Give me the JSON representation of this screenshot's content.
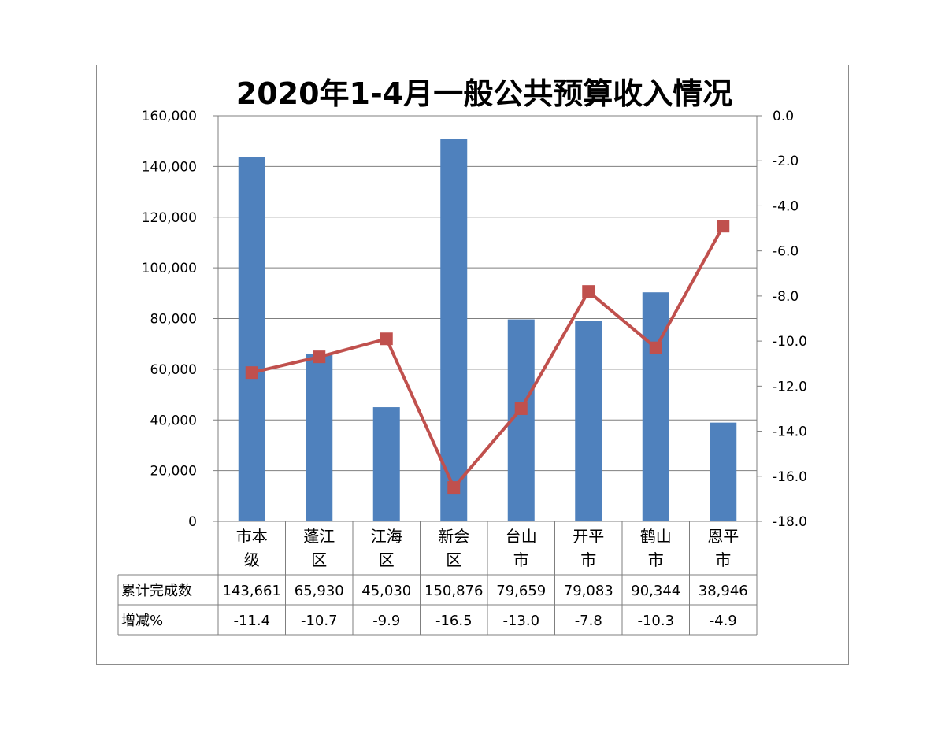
{
  "chart_data": {
    "type": "bar",
    "title": "2020年1-4月一般公共预算收入情况",
    "categories": [
      [
        "市本",
        "级"
      ],
      [
        "蓬江",
        "区"
      ],
      [
        "江海",
        "区"
      ],
      [
        "新会",
        "区"
      ],
      [
        "台山",
        "市"
      ],
      [
        "开平",
        "市"
      ],
      [
        "鹤山",
        "市"
      ],
      [
        "恩平",
        "市"
      ]
    ],
    "series": [
      {
        "name": "累计完成数",
        "type": "bar",
        "axis": "left",
        "color": "#4f81bd",
        "values": [
          143661,
          65930,
          45030,
          150876,
          79659,
          79083,
          90344,
          38946
        ],
        "labels": [
          "143,661",
          "65,930",
          "45,030",
          "150,876",
          "79,659",
          "79,083",
          "90,344",
          "38,946"
        ]
      },
      {
        "name": "增减%",
        "type": "line",
        "axis": "right",
        "color": "#c0504d",
        "values": [
          -11.4,
          -10.7,
          -9.9,
          -16.5,
          -13.0,
          -7.8,
          -10.3,
          -4.9
        ],
        "labels": [
          "-11.4",
          "-10.7",
          "-9.9",
          "-16.5",
          "-13.0",
          "-7.8",
          "-10.3",
          "-4.9"
        ]
      }
    ],
    "y_left": {
      "ylim": [
        0,
        160000
      ],
      "ticks": [
        "0",
        "20,000",
        "40,000",
        "60,000",
        "80,000",
        "100,000",
        "120,000",
        "140,000",
        "160,000"
      ]
    },
    "y_right": {
      "ylim": [
        -18,
        0
      ],
      "ticks": [
        "-18.0",
        "-16.0",
        "-14.0",
        "-12.0",
        "-10.0",
        "-8.0",
        "-6.0",
        "-4.0",
        "-2.0",
        "0.0"
      ]
    },
    "grid": true,
    "legend": "data-table"
  }
}
